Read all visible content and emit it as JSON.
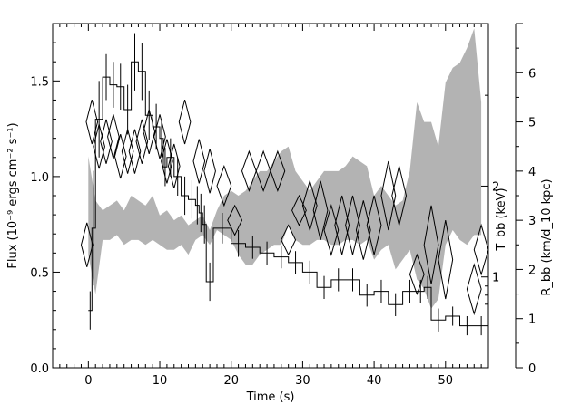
{
  "chart_data": {
    "type": "line",
    "xlabel": "Time (s)",
    "ylabel_left": "Flux (10⁻⁹ ergs cm⁻² s⁻¹)",
    "ylabel_right_inner": "T_bb (keV)",
    "ylabel_right_outer": "R_bb (km/d_10 kpc)",
    "xlim": [
      -5,
      56
    ],
    "ylim_left": [
      0,
      1.8
    ],
    "ylim_right_outer": [
      0,
      7
    ],
    "right_inner_scale": "log",
    "x_ticks": [
      "0",
      "10",
      "20",
      "30",
      "40",
      "50"
    ],
    "y_left_ticks": [
      "0.0",
      "0.5",
      "1.0",
      "1.5"
    ],
    "y_right_inner_ticks": [
      "1",
      "2"
    ],
    "y_right_outer_ticks": [
      "0",
      "1",
      "2",
      "3",
      "4",
      "5",
      "6"
    ],
    "series": [
      {
        "style": "histogram-with-error-bars",
        "color": "#000000",
        "x": [
          0.0,
          0.5,
          1.0,
          2.0,
          3.0,
          4.0,
          5.0,
          6.0,
          7.0,
          8.0,
          9.0,
          10.0,
          10.5,
          11.0,
          12.0,
          13.0,
          14.0,
          15.0,
          15.5,
          16.0,
          16.5,
          17.5,
          20.0,
          22.0,
          24.0,
          26.0,
          28.0,
          30.0,
          32.0,
          34.0,
          36.0,
          38.0,
          40.0,
          42.0,
          44.0,
          46.0,
          47.0,
          48.0,
          50.0,
          52.0,
          54.0
        ],
        "y": [
          0.3,
          0.73,
          1.3,
          1.52,
          1.48,
          1.47,
          1.35,
          1.6,
          1.55,
          1.32,
          1.26,
          1.2,
          1.05,
          1.1,
          1.0,
          0.9,
          0.88,
          0.85,
          0.81,
          0.75,
          0.45,
          0.73,
          0.65,
          0.63,
          0.6,
          0.58,
          0.55,
          0.5,
          0.42,
          0.46,
          0.46,
          0.38,
          0.4,
          0.33,
          0.4,
          0.4,
          0.42,
          0.25,
          0.27,
          0.22,
          0.22
        ],
        "yerr": [
          0.1,
          0.3,
          0.2,
          0.12,
          0.12,
          0.12,
          0.13,
          0.15,
          0.15,
          0.13,
          0.12,
          0.1,
          0.1,
          0.1,
          0.1,
          0.1,
          0.1,
          0.1,
          0.1,
          0.1,
          0.1,
          0.08,
          0.07,
          0.06,
          0.06,
          0.06,
          0.06,
          0.06,
          0.06,
          0.06,
          0.06,
          0.06,
          0.06,
          0.06,
          0.06,
          0.06,
          0.06,
          0.06,
          0.05,
          0.05,
          0.05
        ]
      },
      {
        "style": "diamonds",
        "color": "#000000",
        "axis": "right_outer",
        "x": [
          -0.2,
          0.5,
          1.5,
          2.5,
          3.5,
          4.5,
          5.5,
          6.5,
          7.5,
          8.5,
          10.0,
          11.0,
          12.0,
          13.5,
          15.5,
          17.0,
          19.0,
          20.5,
          22.5,
          24.5,
          26.5,
          28.0,
          29.5,
          31.0,
          32.5,
          34.0,
          35.5,
          37.0,
          38.5,
          40.0,
          42.0,
          43.5,
          46.0,
          48.0,
          50.0,
          54.0,
          55.0
        ],
        "y": [
          2.5,
          5.0,
          4.5,
          4.6,
          4.7,
          4.3,
          4.4,
          4.4,
          4.6,
          4.8,
          4.7,
          4.2,
          4.1,
          5.0,
          4.2,
          4.0,
          3.7,
          3.0,
          4.0,
          4.0,
          4.0,
          2.6,
          3.2,
          3.3,
          3.2,
          2.8,
          2.9,
          2.9,
          2.8,
          2.9,
          3.5,
          3.5,
          1.9,
          2.5,
          2.2,
          1.6,
          2.4
        ],
        "half_width": [
          0.8,
          0.8,
          0.8,
          0.8,
          0.8,
          0.8,
          0.8,
          0.8,
          0.8,
          0.8,
          0.8,
          0.8,
          0.8,
          0.8,
          0.8,
          0.8,
          1.0,
          1.0,
          1.0,
          1.0,
          1.0,
          1.0,
          1.0,
          1.0,
          1.0,
          1.0,
          1.0,
          1.0,
          1.0,
          1.0,
          1.0,
          1.0,
          1.0,
          1.0,
          1.0,
          1.0,
          1.0
        ],
        "half_height": [
          0.45,
          0.45,
          0.45,
          0.45,
          0.45,
          0.45,
          0.45,
          0.45,
          0.45,
          0.45,
          0.45,
          0.45,
          0.45,
          0.45,
          0.45,
          0.45,
          0.4,
          0.3,
          0.4,
          0.4,
          0.4,
          0.3,
          0.3,
          0.5,
          0.6,
          0.5,
          0.6,
          0.6,
          0.6,
          0.6,
          0.7,
          0.6,
          0.4,
          0.8,
          0.8,
          0.5,
          0.5
        ]
      },
      {
        "style": "shaded-band",
        "color": "#b3b3b3",
        "axis": "right_outer",
        "x": [
          0,
          1,
          2,
          3,
          4,
          5,
          6,
          7,
          8,
          9,
          10,
          11,
          12,
          13,
          14,
          15,
          16,
          17,
          18,
          19,
          20,
          21,
          22,
          23,
          24,
          25,
          26,
          27,
          28,
          29,
          30,
          31,
          32,
          33,
          34,
          35,
          36,
          37,
          38,
          39,
          40,
          41,
          42,
          43,
          44,
          45,
          46,
          47,
          48,
          49,
          50,
          51,
          52,
          53,
          54,
          55
        ],
        "upper": [
          4.3,
          3.4,
          3.2,
          3.3,
          3.4,
          3.2,
          3.5,
          3.4,
          3.3,
          3.5,
          3.1,
          3.2,
          3.0,
          3.1,
          2.9,
          3.0,
          3.1,
          2.8,
          3.2,
          3.5,
          3.6,
          3.5,
          3.6,
          3.8,
          4.0,
          4.0,
          4.2,
          4.4,
          4.5,
          4.0,
          3.8,
          3.6,
          3.8,
          4.0,
          4.0,
          4.0,
          4.1,
          4.3,
          4.2,
          4.1,
          3.5,
          3.7,
          3.5,
          3.3,
          3.4,
          4.0,
          5.4,
          5.0,
          5.0,
          4.5,
          5.8,
          6.1,
          6.2,
          6.5,
          6.9,
          5.4
        ],
        "lower": [
          2.3,
          1.5,
          2.6,
          2.6,
          2.7,
          2.5,
          2.6,
          2.6,
          2.5,
          2.6,
          2.5,
          2.4,
          2.4,
          2.5,
          2.3,
          2.6,
          2.7,
          2.5,
          2.8,
          2.7,
          2.6,
          2.3,
          2.1,
          2.1,
          2.3,
          2.4,
          2.5,
          2.5,
          2.9,
          2.6,
          2.5,
          2.5,
          2.6,
          2.6,
          2.5,
          2.5,
          2.6,
          2.6,
          2.5,
          2.6,
          2.2,
          2.4,
          2.5,
          2.0,
          2.2,
          2.4,
          1.8,
          1.6,
          1.2,
          1.4,
          2.5,
          2.8,
          2.6,
          2.5,
          2.7,
          2.7
        ]
      }
    ],
    "grid": false,
    "legend": "none"
  }
}
